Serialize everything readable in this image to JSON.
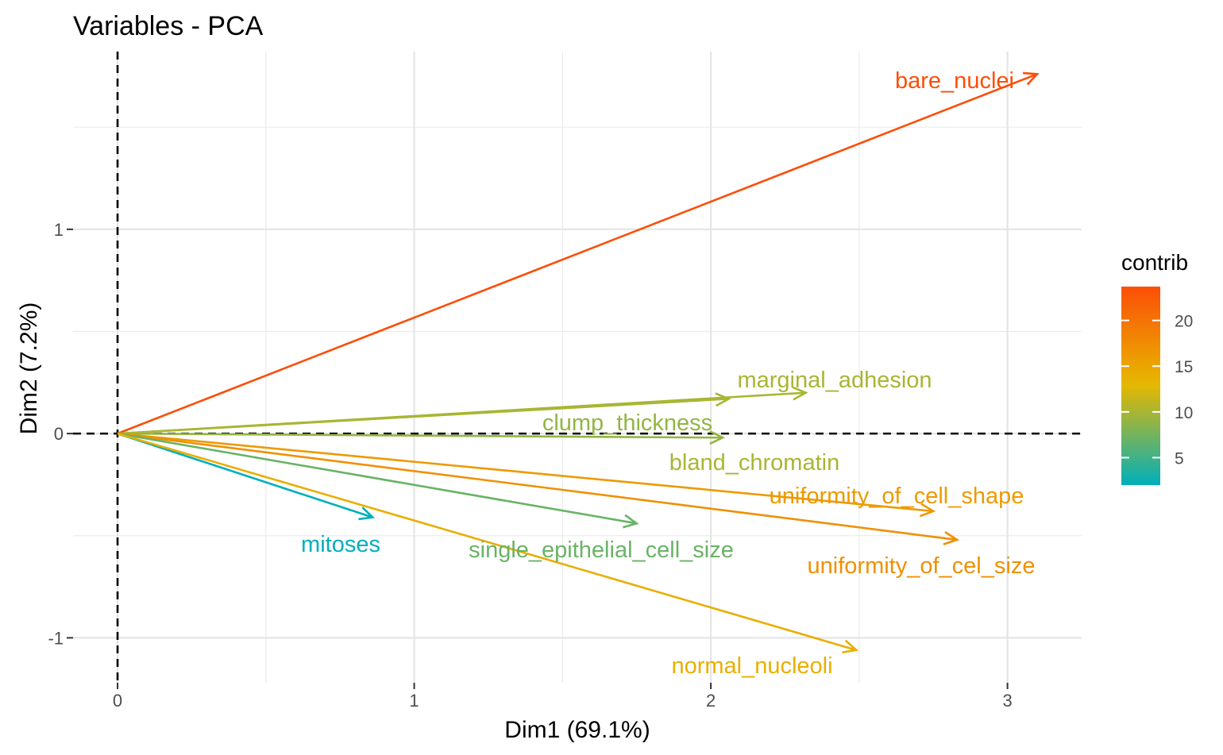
{
  "chart_data": {
    "type": "scatter",
    "title": "Variables - PCA",
    "xlabel": "Dim1 (69.1%)",
    "ylabel": "Dim2 (7.2%)",
    "xlim": [
      -0.15,
      3.25
    ],
    "ylim": [
      -1.22,
      1.87
    ],
    "x_ticks": [
      0,
      1,
      2,
      3
    ],
    "x_tick_labels": [
      "0",
      "1",
      "2",
      "3"
    ],
    "y_ticks": [
      -1,
      0,
      1
    ],
    "y_tick_labels": [
      "-1",
      "0",
      "1"
    ],
    "grid": true,
    "legend_position": "right",
    "legend": {
      "title": "contrib",
      "min": 2,
      "max": 23.7,
      "ticks": [
        5,
        10,
        15,
        20
      ],
      "tick_labels": [
        "5",
        "10",
        "15",
        "20"
      ],
      "colors": [
        "#00AFBB",
        "#E7B800",
        "#FC4E07"
      ],
      "midpoint": 13
    },
    "series": [
      {
        "name": "bare_nuclei",
        "x": 3.1,
        "y": 1.76,
        "contrib": 23.7
      },
      {
        "name": "marginal_adhesion",
        "x": 2.32,
        "y": 0.2,
        "contrib": 10.0
      },
      {
        "name": "clump_thickness",
        "x": 2.04,
        "y": -0.02,
        "contrib": 9.0
      },
      {
        "name": "bland_chromatin",
        "x": 2.06,
        "y": 0.17,
        "contrib": 10.0
      },
      {
        "name": "uniformity_of_cell_shape",
        "x": 2.75,
        "y": -0.38,
        "contrib": 16.0
      },
      {
        "name": "uniformity_of_cel_size",
        "x": 2.83,
        "y": -0.52,
        "contrib": 17.0
      },
      {
        "name": "single_epithelial_cell_size",
        "x": 1.75,
        "y": -0.44,
        "contrib": 7.0
      },
      {
        "name": "mitoses",
        "x": 0.86,
        "y": -0.41,
        "contrib": 2.0
      },
      {
        "name": "normal_nucleoli",
        "x": 2.49,
        "y": -1.06,
        "contrib": 14.0
      }
    ]
  }
}
